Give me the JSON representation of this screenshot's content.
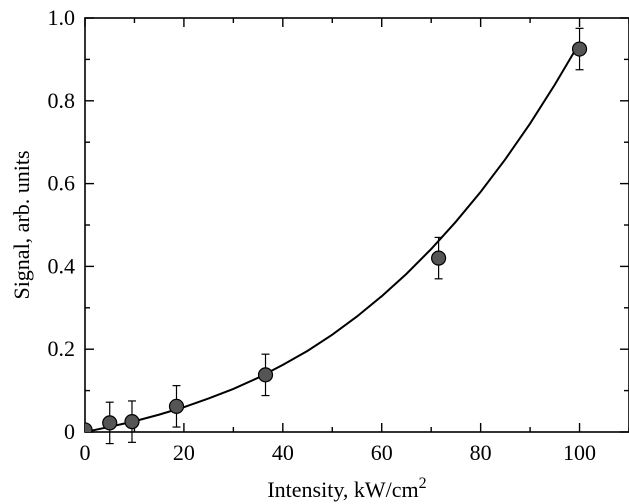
{
  "chart_data": {
    "type": "scatter",
    "title": "",
    "xlabel": "Intensity, kW/cm",
    "xlabel_superscript": "2",
    "ylabel": "Signal, arb. units",
    "xlim": [
      0,
      110
    ],
    "ylim": [
      0,
      1.0
    ],
    "x_ticks": [
      0,
      20,
      40,
      60,
      80,
      100
    ],
    "x_tick_labels": [
      "0",
      "20",
      "40",
      "60",
      "80",
      "100"
    ],
    "y_ticks": [
      0,
      0.2,
      0.4,
      0.6,
      0.8,
      1.0
    ],
    "y_tick_labels": [
      "0",
      "0.2",
      "0.4",
      "0.6",
      "0.8",
      "1.0"
    ],
    "grid": false,
    "legend": "none",
    "series": [
      {
        "kind": "points-with-error-bars",
        "marker_color": "#555555",
        "x": [
          0,
          5,
          9.5,
          18.5,
          36.5,
          71.5,
          100
        ],
        "y": [
          0.005,
          0.022,
          0.025,
          0.062,
          0.138,
          0.42,
          0.925
        ],
        "error": [
          0,
          0.05,
          0.05,
          0.05,
          0.05,
          0.05,
          0.05
        ]
      },
      {
        "kind": "fit-line",
        "line_color": "#000000",
        "x": [
          0,
          5,
          10,
          15,
          20,
          25,
          30,
          35,
          40,
          45,
          50,
          55,
          60,
          65,
          70,
          75,
          80,
          85,
          90,
          95,
          100
        ],
        "y": [
          0.0,
          0.0125,
          0.026,
          0.042,
          0.06,
          0.081,
          0.104,
          0.131,
          0.162,
          0.196,
          0.235,
          0.279,
          0.328,
          0.382,
          0.442,
          0.508,
          0.58,
          0.659,
          0.745,
          0.839,
          0.94
        ]
      }
    ]
  }
}
